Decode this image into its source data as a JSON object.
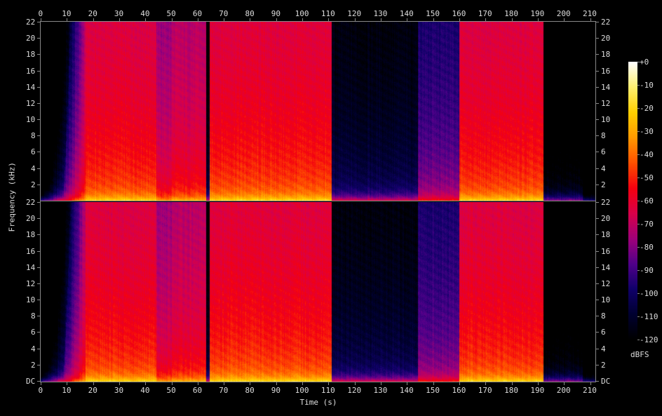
{
  "chart_data": {
    "type": "heatmap",
    "subtype": "spectrogram",
    "channels": 2,
    "xlabel": "Time (s)",
    "ylabel": "Frequency (kHz)",
    "xlim": [
      0,
      212
    ],
    "ylim_khz": [
      0,
      22
    ],
    "x_ticks": [
      "0",
      "10",
      "20",
      "30",
      "40",
      "50",
      "60",
      "70",
      "80",
      "90",
      "100",
      "110",
      "120",
      "130",
      "140",
      "150",
      "160",
      "170",
      "180",
      "190",
      "200",
      "210"
    ],
    "y_ticks_top": [
      "22",
      "20",
      "18",
      "16",
      "14",
      "12",
      "10",
      "8",
      "6",
      "4",
      "2"
    ],
    "y_ticks_bottom": [
      "22",
      "20",
      "18",
      "16",
      "14",
      "12",
      "10",
      "8",
      "6",
      "4",
      "2",
      "DC"
    ],
    "colorbar": {
      "unit": "dBFS",
      "range": [
        -120,
        0
      ],
      "ticks": [
        "+0",
        "-10",
        "-20",
        "-30",
        "-40",
        "-50",
        "-60",
        "-70",
        "-80",
        "-90",
        "-100",
        "-110",
        "-120"
      ],
      "colors": [
        "#000000",
        "#000030",
        "#10006a",
        "#50008a",
        "#a0007a",
        "#d8004a",
        "#f40010",
        "#ff5000",
        "#ff9a00",
        "#ffd000",
        "#fff070",
        "#ffffff"
      ]
    },
    "segments_dbfs": [
      {
        "start": 0,
        "end": 17,
        "level": -95,
        "fade_in": true
      },
      {
        "start": 17,
        "end": 44,
        "level": -47
      },
      {
        "start": 44,
        "end": 50,
        "level": -60
      },
      {
        "start": 50,
        "end": 63,
        "level": -55
      },
      {
        "start": 63,
        "end": 64.5,
        "level": -100
      },
      {
        "start": 64.5,
        "end": 111,
        "level": -46
      },
      {
        "start": 111,
        "end": 144,
        "level": -95
      },
      {
        "start": 144,
        "end": 160,
        "level": -80
      },
      {
        "start": 160,
        "end": 192,
        "level": -47
      },
      {
        "start": 192,
        "end": 207,
        "level": -110
      },
      {
        "start": 207,
        "end": 212,
        "level": -125
      }
    ]
  }
}
